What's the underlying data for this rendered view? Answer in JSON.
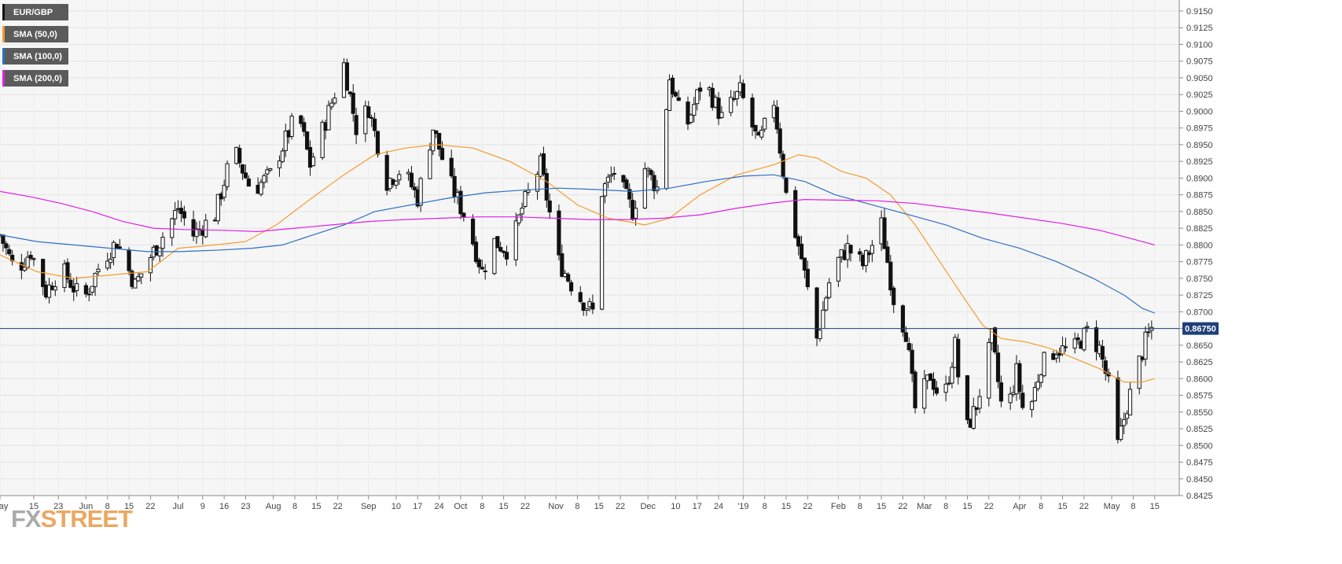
{
  "legend": [
    {
      "label": "EUR/GBP",
      "color": "#111111"
    },
    {
      "label": "SMA (50,0)",
      "color": "#f39c2c"
    },
    {
      "label": "SMA (100,0)",
      "color": "#2f6fc2"
    },
    {
      "label": "SMA (200,0)",
      "color": "#e21ee6"
    }
  ],
  "logo": {
    "fx": "FX",
    "street": "STREET"
  },
  "chart_data": {
    "type": "candlestick",
    "title": "",
    "xlabel": "",
    "ylabel": "",
    "ylim": [
      0.8425,
      0.915
    ],
    "y_ticks": [
      "0.8425",
      "0.8450",
      "0.8475",
      "0.8500",
      "0.8525",
      "0.8550",
      "0.8575",
      "0.8600",
      "0.8625",
      "0.8650",
      "0.8675",
      "0.8700",
      "0.8725",
      "0.8750",
      "0.8775",
      "0.8800",
      "0.8825",
      "0.8850",
      "0.8875",
      "0.8900",
      "0.8925",
      "0.8950",
      "0.8975",
      "0.9000",
      "0.9025",
      "0.9050",
      "0.9075",
      "0.9100",
      "0.9125",
      "0.9150"
    ],
    "x_ticks": [
      {
        "label": "May",
        "day": 0
      },
      {
        "label": "15",
        "day": 11
      },
      {
        "label": "23",
        "day": 19
      },
      {
        "label": "Jun",
        "day": 28
      },
      {
        "label": "8",
        "day": 35
      },
      {
        "label": "15",
        "day": 42
      },
      {
        "label": "22",
        "day": 49
      },
      {
        "label": "Jul",
        "day": 58
      },
      {
        "label": "9",
        "day": 66
      },
      {
        "label": "16",
        "day": 73
      },
      {
        "label": "23",
        "day": 80
      },
      {
        "label": "Aug",
        "day": 89
      },
      {
        "label": "8",
        "day": 96
      },
      {
        "label": "15",
        "day": 103
      },
      {
        "label": "22",
        "day": 110
      },
      {
        "label": "Sep",
        "day": 120
      },
      {
        "label": "10",
        "day": 129
      },
      {
        "label": "17",
        "day": 136
      },
      {
        "label": "24",
        "day": 143
      },
      {
        "label": "Oct",
        "day": 150
      },
      {
        "label": "8",
        "day": 157
      },
      {
        "label": "15",
        "day": 164
      },
      {
        "label": "22",
        "day": 171
      },
      {
        "label": "Nov",
        "day": 181
      },
      {
        "label": "8",
        "day": 188
      },
      {
        "label": "15",
        "day": 195
      },
      {
        "label": "22",
        "day": 202
      },
      {
        "label": "Dec",
        "day": 211
      },
      {
        "label": "10",
        "day": 220
      },
      {
        "label": "17",
        "day": 227
      },
      {
        "label": "24",
        "day": 234
      },
      {
        "label": "'19",
        "day": 242
      },
      {
        "label": "8",
        "day": 249
      },
      {
        "label": "15",
        "day": 256
      },
      {
        "label": "22",
        "day": 263
      },
      {
        "label": "Feb",
        "day": 273
      },
      {
        "label": "8",
        "day": 280
      },
      {
        "label": "15",
        "day": 287
      },
      {
        "label": "22",
        "day": 294
      },
      {
        "label": "Mar",
        "day": 301
      },
      {
        "label": "8",
        "day": 308
      },
      {
        "label": "15",
        "day": 315
      },
      {
        "label": "22",
        "day": 322
      },
      {
        "label": "Apr",
        "day": 332
      },
      {
        "label": "8",
        "day": 339
      },
      {
        "label": "15",
        "day": 346
      },
      {
        "label": "22",
        "day": 353
      },
      {
        "label": "May",
        "day": 362
      },
      {
        "label": "8",
        "day": 369
      },
      {
        "label": "15",
        "day": 376
      }
    ],
    "last_price": {
      "value": 0.8675,
      "label": "0.86750",
      "color": "#1f3f7a"
    },
    "price_anchors": [
      {
        "day": 0,
        "value": 0.8815
      },
      {
        "day": 5,
        "value": 0.876
      },
      {
        "day": 10,
        "value": 0.879
      },
      {
        "day": 15,
        "value": 0.873
      },
      {
        "day": 20,
        "value": 0.8765
      },
      {
        "day": 27,
        "value": 0.8715
      },
      {
        "day": 33,
        "value": 0.8775
      },
      {
        "day": 38,
        "value": 0.8805
      },
      {
        "day": 44,
        "value": 0.874
      },
      {
        "day": 48,
        "value": 0.8775
      },
      {
        "day": 52,
        "value": 0.8805
      },
      {
        "day": 58,
        "value": 0.8855
      },
      {
        "day": 63,
        "value": 0.8815
      },
      {
        "day": 70,
        "value": 0.8845
      },
      {
        "day": 76,
        "value": 0.8945
      },
      {
        "day": 82,
        "value": 0.888
      },
      {
        "day": 88,
        "value": 0.8905
      },
      {
        "day": 97,
        "value": 0.9
      },
      {
        "day": 101,
        "value": 0.892
      },
      {
        "day": 106,
        "value": 0.8985
      },
      {
        "day": 112,
        "value": 0.907
      },
      {
        "day": 116,
        "value": 0.8975
      },
      {
        "day": 120,
        "value": 0.9005
      },
      {
        "day": 126,
        "value": 0.8895
      },
      {
        "day": 131,
        "value": 0.8915
      },
      {
        "day": 136,
        "value": 0.887
      },
      {
        "day": 141,
        "value": 0.8975
      },
      {
        "day": 146,
        "value": 0.89
      },
      {
        "day": 152,
        "value": 0.8835
      },
      {
        "day": 157,
        "value": 0.876
      },
      {
        "day": 161,
        "value": 0.8805
      },
      {
        "day": 166,
        "value": 0.879
      },
      {
        "day": 170,
        "value": 0.8855
      },
      {
        "day": 176,
        "value": 0.892
      },
      {
        "day": 182,
        "value": 0.8775
      },
      {
        "day": 188,
        "value": 0.8725
      },
      {
        "day": 193,
        "value": 0.87
      },
      {
        "day": 196,
        "value": 0.888
      },
      {
        "day": 200,
        "value": 0.891
      },
      {
        "day": 206,
        "value": 0.885
      },
      {
        "day": 210,
        "value": 0.8915
      },
      {
        "day": 214,
        "value": 0.8885
      },
      {
        "day": 218,
        "value": 0.905
      },
      {
        "day": 223,
        "value": 0.897
      },
      {
        "day": 229,
        "value": 0.905
      },
      {
        "day": 235,
        "value": 0.899
      },
      {
        "day": 241,
        "value": 0.903
      },
      {
        "day": 247,
        "value": 0.895
      },
      {
        "day": 252,
        "value": 0.9015
      },
      {
        "day": 256,
        "value": 0.8875
      },
      {
        "day": 261,
        "value": 0.878
      },
      {
        "day": 266,
        "value": 0.866
      },
      {
        "day": 271,
        "value": 0.8765
      },
      {
        "day": 276,
        "value": 0.8795
      },
      {
        "day": 281,
        "value": 0.877
      },
      {
        "day": 287,
        "value": 0.883
      },
      {
        "day": 291,
        "value": 0.872
      },
      {
        "day": 295,
        "value": 0.867
      },
      {
        "day": 298,
        "value": 0.8555
      },
      {
        "day": 303,
        "value": 0.8605
      },
      {
        "day": 307,
        "value": 0.856
      },
      {
        "day": 311,
        "value": 0.865
      },
      {
        "day": 314,
        "value": 0.8515
      },
      {
        "day": 318,
        "value": 0.856
      },
      {
        "day": 323,
        "value": 0.866
      },
      {
        "day": 327,
        "value": 0.853
      },
      {
        "day": 331,
        "value": 0.861
      },
      {
        "day": 334,
        "value": 0.853
      },
      {
        "day": 339,
        "value": 0.862
      },
      {
        "day": 344,
        "value": 0.8645
      },
      {
        "day": 349,
        "value": 0.864
      },
      {
        "day": 354,
        "value": 0.867
      },
      {
        "day": 358,
        "value": 0.8645
      },
      {
        "day": 361,
        "value": 0.859
      },
      {
        "day": 364,
        "value": 0.85
      },
      {
        "day": 367,
        "value": 0.856
      },
      {
        "day": 370,
        "value": 0.861
      },
      {
        "day": 373,
        "value": 0.8655
      },
      {
        "day": 375,
        "value": 0.8675
      }
    ],
    "series": [
      {
        "name": "SMA (50,0)",
        "color": "#f39c2c",
        "points": [
          {
            "day": 0,
            "value": 0.8785
          },
          {
            "day": 12,
            "value": 0.876
          },
          {
            "day": 24,
            "value": 0.875
          },
          {
            "day": 36,
            "value": 0.8755
          },
          {
            "day": 48,
            "value": 0.876
          },
          {
            "day": 58,
            "value": 0.8795
          },
          {
            "day": 70,
            "value": 0.88
          },
          {
            "day": 80,
            "value": 0.8805
          },
          {
            "day": 90,
            "value": 0.883
          },
          {
            "day": 100,
            "value": 0.8865
          },
          {
            "day": 112,
            "value": 0.8905
          },
          {
            "day": 122,
            "value": 0.8935
          },
          {
            "day": 132,
            "value": 0.8945
          },
          {
            "day": 142,
            "value": 0.895
          },
          {
            "day": 154,
            "value": 0.8945
          },
          {
            "day": 166,
            "value": 0.8925
          },
          {
            "day": 178,
            "value": 0.8895
          },
          {
            "day": 188,
            "value": 0.886
          },
          {
            "day": 198,
            "value": 0.884
          },
          {
            "day": 210,
            "value": 0.883
          },
          {
            "day": 218,
            "value": 0.884
          },
          {
            "day": 228,
            "value": 0.8875
          },
          {
            "day": 240,
            "value": 0.8905
          },
          {
            "day": 252,
            "value": 0.892
          },
          {
            "day": 260,
            "value": 0.8935
          },
          {
            "day": 266,
            "value": 0.893
          },
          {
            "day": 274,
            "value": 0.891
          },
          {
            "day": 282,
            "value": 0.89
          },
          {
            "day": 290,
            "value": 0.8875
          },
          {
            "day": 298,
            "value": 0.883
          },
          {
            "day": 306,
            "value": 0.8775
          },
          {
            "day": 314,
            "value": 0.872
          },
          {
            "day": 320,
            "value": 0.868
          },
          {
            "day": 326,
            "value": 0.866
          },
          {
            "day": 334,
            "value": 0.8655
          },
          {
            "day": 342,
            "value": 0.8645
          },
          {
            "day": 350,
            "value": 0.863
          },
          {
            "day": 358,
            "value": 0.8615
          },
          {
            "day": 366,
            "value": 0.8595
          },
          {
            "day": 372,
            "value": 0.8595
          },
          {
            "day": 376,
            "value": 0.86
          }
        ]
      },
      {
        "name": "SMA (100,0)",
        "color": "#2f6fc2",
        "points": [
          {
            "day": 0,
            "value": 0.8815
          },
          {
            "day": 12,
            "value": 0.8805
          },
          {
            "day": 24,
            "value": 0.88
          },
          {
            "day": 36,
            "value": 0.8795
          },
          {
            "day": 48,
            "value": 0.879
          },
          {
            "day": 58,
            "value": 0.879
          },
          {
            "day": 70,
            "value": 0.8792
          },
          {
            "day": 82,
            "value": 0.8795
          },
          {
            "day": 92,
            "value": 0.88
          },
          {
            "day": 102,
            "value": 0.8815
          },
          {
            "day": 112,
            "value": 0.883
          },
          {
            "day": 122,
            "value": 0.885
          },
          {
            "day": 134,
            "value": 0.886
          },
          {
            "day": 146,
            "value": 0.887
          },
          {
            "day": 158,
            "value": 0.8878
          },
          {
            "day": 170,
            "value": 0.8882
          },
          {
            "day": 182,
            "value": 0.8885
          },
          {
            "day": 194,
            "value": 0.8883
          },
          {
            "day": 206,
            "value": 0.888
          },
          {
            "day": 218,
            "value": 0.8885
          },
          {
            "day": 230,
            "value": 0.8895
          },
          {
            "day": 242,
            "value": 0.8903
          },
          {
            "day": 252,
            "value": 0.8905
          },
          {
            "day": 262,
            "value": 0.8895
          },
          {
            "day": 272,
            "value": 0.8875
          },
          {
            "day": 284,
            "value": 0.886
          },
          {
            "day": 296,
            "value": 0.8845
          },
          {
            "day": 308,
            "value": 0.883
          },
          {
            "day": 320,
            "value": 0.881
          },
          {
            "day": 332,
            "value": 0.8795
          },
          {
            "day": 344,
            "value": 0.8775
          },
          {
            "day": 356,
            "value": 0.875
          },
          {
            "day": 366,
            "value": 0.8725
          },
          {
            "day": 372,
            "value": 0.8705
          },
          {
            "day": 376,
            "value": 0.8698
          }
        ]
      },
      {
        "name": "SMA (200,0)",
        "color": "#e21ee6",
        "points": [
          {
            "day": 0,
            "value": 0.888
          },
          {
            "day": 10,
            "value": 0.8872
          },
          {
            "day": 20,
            "value": 0.8862
          },
          {
            "day": 30,
            "value": 0.885
          },
          {
            "day": 40,
            "value": 0.8835
          },
          {
            "day": 50,
            "value": 0.8825
          },
          {
            "day": 60,
            "value": 0.8823
          },
          {
            "day": 72,
            "value": 0.8822
          },
          {
            "day": 84,
            "value": 0.882
          },
          {
            "day": 96,
            "value": 0.8825
          },
          {
            "day": 108,
            "value": 0.883
          },
          {
            "day": 120,
            "value": 0.8835
          },
          {
            "day": 132,
            "value": 0.8838
          },
          {
            "day": 144,
            "value": 0.884
          },
          {
            "day": 156,
            "value": 0.8842
          },
          {
            "day": 168,
            "value": 0.8842
          },
          {
            "day": 180,
            "value": 0.884
          },
          {
            "day": 192,
            "value": 0.8838
          },
          {
            "day": 204,
            "value": 0.8838
          },
          {
            "day": 216,
            "value": 0.884
          },
          {
            "day": 228,
            "value": 0.8845
          },
          {
            "day": 240,
            "value": 0.8855
          },
          {
            "day": 252,
            "value": 0.8863
          },
          {
            "day": 262,
            "value": 0.8868
          },
          {
            "day": 274,
            "value": 0.8867
          },
          {
            "day": 286,
            "value": 0.8866
          },
          {
            "day": 298,
            "value": 0.8862
          },
          {
            "day": 310,
            "value": 0.8855
          },
          {
            "day": 322,
            "value": 0.8848
          },
          {
            "day": 334,
            "value": 0.884
          },
          {
            "day": 346,
            "value": 0.8832
          },
          {
            "day": 358,
            "value": 0.8822
          },
          {
            "day": 368,
            "value": 0.881
          },
          {
            "day": 376,
            "value": 0.88
          }
        ]
      }
    ]
  }
}
